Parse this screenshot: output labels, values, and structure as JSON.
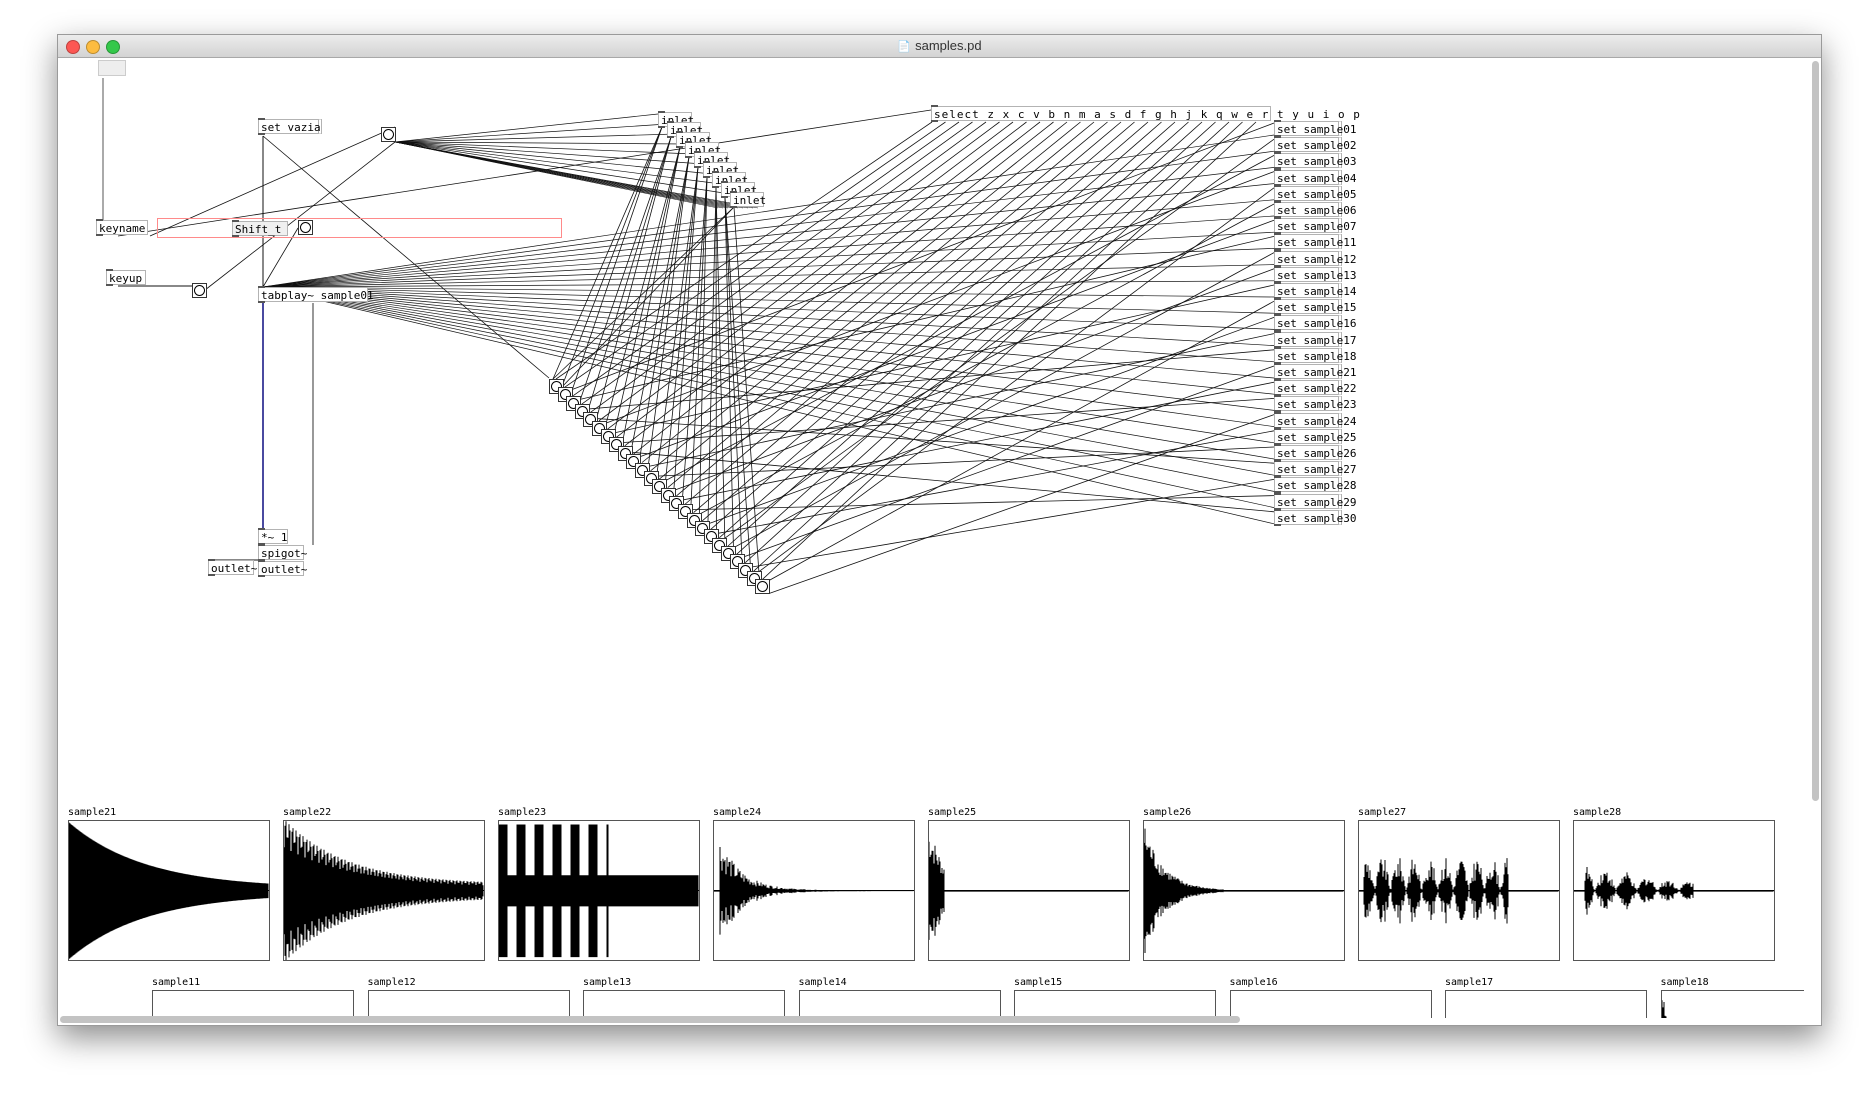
{
  "window": {
    "title": "samples.pd"
  },
  "objects": {
    "set_vazia": "set vazia",
    "keyname": "keyname",
    "shift_toggle": "Shift_t",
    "keyup": "keyup",
    "tabplay": "tabplay~ sample01",
    "mult": "*~ 1",
    "spigot": "spigot~",
    "outlet_left": "outlet~",
    "outlet_right": "outlet~",
    "select": "select z x c v b n m a s d f g h j k q w e r t y u i o p",
    "inlet": "inlet"
  },
  "messages": [
    "set sample01",
    "set sample02",
    "set sample03",
    "set sample04",
    "set sample05",
    "set sample06",
    "set sample07",
    "set sample11",
    "set sample12",
    "set sample13",
    "set sample14",
    "set sample15",
    "set sample16",
    "set sample17",
    "set sample18",
    "set sample21",
    "set sample22",
    "set sample23",
    "set sample24",
    "set sample25",
    "set sample26",
    "set sample27",
    "set sample28",
    "set sample29",
    "set sample30"
  ],
  "arrays_row1": [
    {
      "name": "sample21",
      "kind": "decay-dense"
    },
    {
      "name": "sample22",
      "kind": "decay-ringing"
    },
    {
      "name": "sample23",
      "kind": "pulses"
    },
    {
      "name": "sample24",
      "kind": "burst-mid"
    },
    {
      "name": "sample25",
      "kind": "burst-short"
    },
    {
      "name": "sample26",
      "kind": "burst-tall"
    },
    {
      "name": "sample27",
      "kind": "rhythmic"
    },
    {
      "name": "sample28",
      "kind": "rhythmic-small"
    }
  ],
  "arrays_row2": [
    {
      "name": "sample11",
      "kind": "sparse-low"
    },
    {
      "name": "sample12",
      "kind": "flat"
    },
    {
      "name": "sample13",
      "kind": "spike-left"
    },
    {
      "name": "sample14",
      "kind": "sparse-low"
    },
    {
      "name": "sample15",
      "kind": "spike-left"
    },
    {
      "name": "sample16",
      "kind": "flat"
    },
    {
      "name": "sample17",
      "kind": "spike-left"
    },
    {
      "name": "sample18",
      "kind": "burst-tall"
    }
  ]
}
